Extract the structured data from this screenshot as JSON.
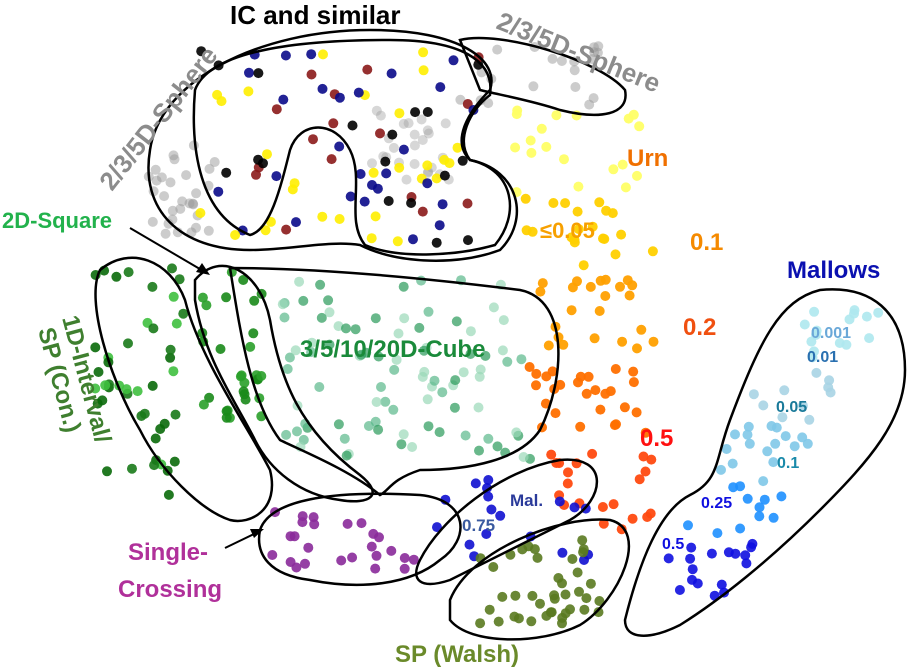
{
  "labels": {
    "ic": {
      "text": "IC and similar",
      "color": "#000000"
    },
    "sphere_left": {
      "text": "2/3/5D-Sphere",
      "color": "#8c8c8c"
    },
    "sphere_right": {
      "text": "2/3/5D-Sphere",
      "color": "#8c8c8c"
    },
    "urn": {
      "text": "Urn",
      "color": "#f07000"
    },
    "urn_005": {
      "text": "≤0.05",
      "color": "#f7a000"
    },
    "urn_01": {
      "text": "0.1",
      "color": "#f58a00"
    },
    "urn_02": {
      "text": "0.2",
      "color": "#f05010"
    },
    "urn_05": {
      "text": "0.5",
      "color": "#ff1010"
    },
    "square": {
      "text": "2D-Square",
      "color": "#22b24c"
    },
    "cube": {
      "text": "3/5/10/20D-Cube",
      "color": "#1a8a3a"
    },
    "interval_1": {
      "text": "1D-Interval/",
      "color": "#3f7f2f"
    },
    "interval_2": {
      "text": "SP (Con.)",
      "color": "#3f7f2f"
    },
    "single_1": {
      "text": "Single-",
      "color": "#b0309a"
    },
    "single_2": {
      "text": "Crossing",
      "color": "#b0309a"
    },
    "walsh": {
      "text": "SP (Walsh)",
      "color": "#6a8a2a"
    },
    "mallows": {
      "text": "Mallows",
      "color": "#0a10b0"
    },
    "mal": {
      "text": "Mal.",
      "color": "#2a3a9a"
    },
    "mal_075": {
      "text": "0.75",
      "color": "#3a5aa0"
    },
    "m_0001": {
      "text": "0.001",
      "color": "#6aa8d8"
    },
    "m_001": {
      "text": "0.01",
      "color": "#2a70b0"
    },
    "m_005": {
      "text": "0.05",
      "color": "#1a7a9a"
    },
    "m_01": {
      "text": "0.1",
      "color": "#1a8aaa"
    },
    "m_025": {
      "text": "0.25",
      "color": "#1010e0"
    },
    "m_05": {
      "text": "0.5",
      "color": "#1010e0"
    }
  },
  "point_colors": {
    "ic": [
      "#8b1a1a",
      "#000000",
      "#0a0a8a",
      "#ffee00"
    ],
    "sphere": "#9a9a9a",
    "urn": [
      "#ffff66",
      "#ffd000",
      "#ffa000",
      "#ff7000",
      "#ff4a10"
    ],
    "interval": [
      "#1a7a1a",
      "#3fc03f",
      "#0a6a0a"
    ],
    "square": [
      "#1a8a1a",
      "#2aa02a"
    ],
    "cube": [
      "#2a9a5a",
      "#5ab88a",
      "#9ad8b8"
    ],
    "single_crossing": "#8a2a9a",
    "mallows_075": "#1010d0",
    "walsh": "#5a7a20",
    "mallows": [
      "#aee8ee",
      "#a8d4e4",
      "#80c8e8",
      "#1e90ff",
      "#1010e0"
    ]
  }
}
